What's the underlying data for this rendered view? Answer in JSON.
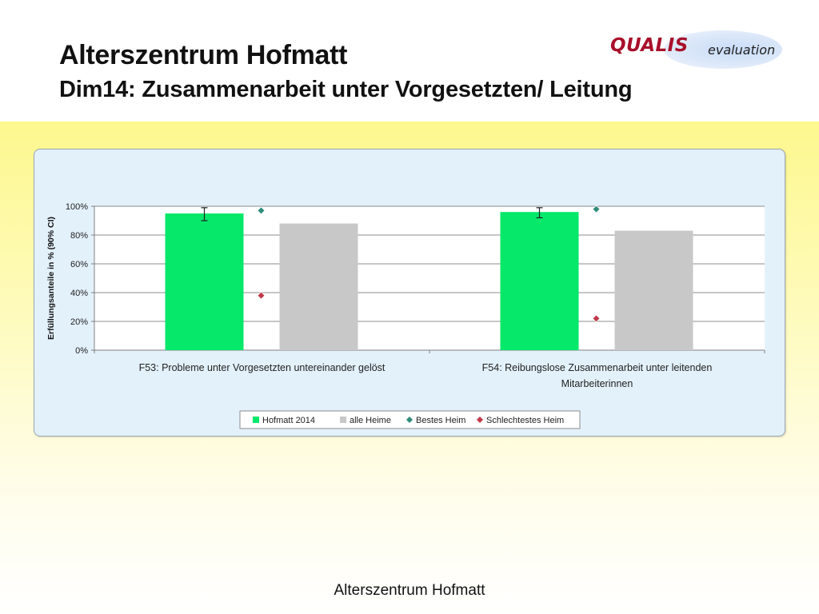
{
  "header": {
    "title": "Alterszentrum Hofmatt",
    "subtitle": "Dim14: Zusammenarbeit unter Vorgesetzten/ Leitung"
  },
  "logo": {
    "brand": "QUALIS",
    "suffix": "evaluation"
  },
  "footer": {
    "text": "Alterszentrum Hofmatt"
  },
  "chart_data": {
    "type": "bar",
    "title": "",
    "ylabel": "Erfüllungsanteile  in % (90% CI)",
    "xlabel": "",
    "ylim": [
      0,
      100
    ],
    "yticks": [
      0,
      20,
      40,
      60,
      80,
      100
    ],
    "ytick_labels": [
      "0%",
      "20%",
      "40%",
      "60%",
      "80%",
      "100%"
    ],
    "grid": true,
    "legend_position": "bottom",
    "categories": [
      [
        "F53: Probleme unter Vorgesetzten untereinander gelöst"
      ],
      [
        "F54: Reibungslose Zusammenarbeit unter leitenden",
        "Mitarbeiterinnen"
      ]
    ],
    "series": [
      {
        "name": "Hofmatt 2014",
        "kind": "bar",
        "color": "#05e86a",
        "values": [
          95,
          96
        ],
        "ci_low": [
          90,
          92
        ],
        "ci_high": [
          99,
          99
        ]
      },
      {
        "name": "alle Heime",
        "kind": "bar",
        "color": "#c8c8c8",
        "values": [
          88,
          83
        ]
      },
      {
        "name": "Bestes Heim",
        "kind": "marker",
        "color": "#2e8b7a",
        "values": [
          97,
          98
        ]
      },
      {
        "name": "Schlechtestes Heim",
        "kind": "marker",
        "color": "#c0394a",
        "values": [
          38,
          22
        ]
      }
    ]
  }
}
